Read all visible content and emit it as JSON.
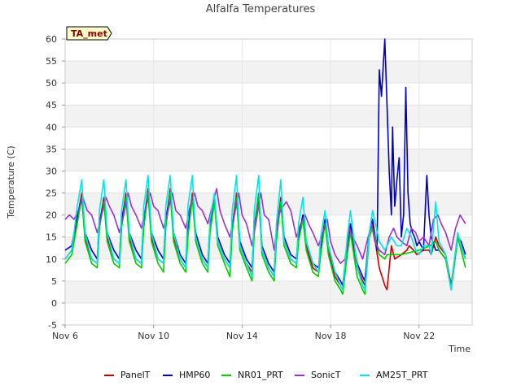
{
  "chart_data": {
    "type": "line",
    "title": "Alfalfa Temperatures",
    "xlabel": "Time",
    "ylabel": "Temperature (C)",
    "badge": "TA_met",
    "xlim": [
      6,
      24.4
    ],
    "ylim": [
      -5,
      60
    ],
    "yticks": [
      -5,
      0,
      5,
      10,
      15,
      20,
      25,
      30,
      35,
      40,
      45,
      50,
      55,
      60
    ],
    "xticks": [
      {
        "value": 6,
        "label": "Nov 6"
      },
      {
        "value": 10,
        "label": "Nov 10"
      },
      {
        "value": 14,
        "label": "Nov 14"
      },
      {
        "value": 18,
        "label": "Nov 18"
      },
      {
        "value": 22,
        "label": "Nov 22"
      }
    ],
    "grid": true,
    "legend": "bottom",
    "series": [
      {
        "name": "PanelT",
        "color": "#cc0000",
        "x": [
          6.0,
          6.3,
          6.55,
          6.75,
          6.9,
          7.2,
          7.45,
          7.55,
          7.75,
          7.9,
          8.2,
          8.45,
          8.55,
          8.75,
          8.9,
          9.2,
          9.45,
          9.55,
          9.75,
          9.9,
          10.2,
          10.45,
          10.55,
          10.75,
          10.9,
          11.2,
          11.45,
          11.55,
          11.75,
          11.9,
          12.2,
          12.45,
          12.55,
          12.75,
          12.9,
          13.2,
          13.45,
          13.55,
          13.75,
          13.9,
          14.2,
          14.45,
          14.55,
          14.75,
          14.9,
          15.2,
          15.45,
          15.55,
          15.75,
          15.9,
          16.2,
          16.45,
          16.55,
          16.75,
          16.9,
          17.2,
          17.45,
          17.55,
          17.75,
          17.9,
          18.2,
          18.45,
          18.55,
          18.75,
          18.9,
          19.2,
          19.45,
          19.55,
          19.75,
          19.9,
          20.2,
          20.45,
          20.55,
          20.75,
          20.9,
          21.2,
          21.45,
          21.55,
          21.75,
          21.9,
          22.2,
          22.45,
          22.55,
          22.75,
          22.9,
          23.2,
          23.45,
          23.55,
          23.75,
          23.9,
          24.1
        ],
        "y": [
          10,
          12,
          19,
          25,
          15,
          10,
          9,
          18,
          24,
          15,
          10,
          9,
          18,
          25,
          15,
          10,
          9,
          18,
          26,
          15,
          10,
          9,
          18,
          26,
          15,
          10,
          8,
          16,
          25,
          15,
          10,
          8,
          17,
          24,
          14,
          10,
          8,
          17,
          25,
          13,
          9,
          7,
          17,
          25,
          12,
          8,
          6,
          15,
          24,
          14,
          10,
          9,
          15,
          20,
          13,
          8,
          7,
          12,
          19,
          12,
          6,
          4,
          3,
          12,
          17,
          8,
          5,
          4,
          16,
          18,
          8,
          4,
          3,
          13,
          10,
          11,
          12,
          13,
          12,
          11,
          12,
          12,
          11,
          15,
          13,
          11,
          4,
          8,
          15,
          13,
          10
        ]
      },
      {
        "name": "HMP60",
        "color": "#0000cc",
        "x": [
          6.0,
          6.3,
          6.55,
          6.75,
          6.9,
          7.2,
          7.45,
          7.55,
          7.75,
          7.9,
          8.2,
          8.45,
          8.55,
          8.75,
          8.9,
          9.2,
          9.45,
          9.55,
          9.75,
          9.9,
          10.2,
          10.45,
          10.55,
          10.75,
          10.9,
          11.2,
          11.45,
          11.55,
          11.75,
          11.9,
          12.2,
          12.45,
          12.55,
          12.75,
          12.9,
          13.2,
          13.45,
          13.55,
          13.75,
          13.9,
          14.2,
          14.45,
          14.55,
          14.75,
          14.9,
          15.2,
          15.45,
          15.55,
          15.75,
          15.9,
          16.2,
          16.45,
          16.55,
          16.75,
          16.9,
          17.2,
          17.45,
          17.55,
          17.75,
          17.9,
          18.2,
          18.45,
          18.55,
          18.75,
          18.9,
          19.2,
          19.45,
          19.55,
          19.75,
          19.9,
          20.1,
          20.2,
          20.3,
          20.45,
          20.55,
          20.65,
          20.75,
          20.8,
          20.9,
          21.0,
          21.1,
          21.2,
          21.3,
          21.4,
          21.5,
          21.6,
          21.7,
          21.8,
          21.9,
          22.0,
          22.2,
          22.35,
          22.45,
          22.55,
          22.75,
          22.9,
          23.2,
          23.45,
          23.55,
          23.75,
          23.9,
          24.1
        ],
        "y": [
          12,
          13,
          20,
          24,
          16,
          12,
          10,
          18,
          23,
          16,
          12,
          10,
          19,
          24,
          16,
          12,
          10,
          19,
          25,
          16,
          12,
          10,
          19,
          25,
          16,
          11,
          9,
          17,
          24,
          16,
          11,
          9,
          18,
          24,
          15,
          11,
          9,
          17,
          24,
          14,
          10,
          8,
          17,
          24,
          13,
          9,
          7,
          16,
          23,
          15,
          11,
          10,
          15,
          20,
          14,
          9,
          8,
          12,
          19,
          13,
          7,
          5,
          4,
          13,
          18,
          9,
          6,
          5,
          16,
          19,
          12,
          53,
          47,
          60,
          45,
          30,
          20,
          40,
          22,
          28,
          33,
          15,
          20,
          49,
          25,
          18,
          16,
          15,
          13,
          14,
          12,
          29,
          20,
          15,
          12,
          12,
          10,
          4,
          7,
          15,
          14,
          11
        ]
      },
      {
        "name": "NR01_PRT",
        "color": "#00cc00",
        "x": [
          6.0,
          6.3,
          6.55,
          6.75,
          6.9,
          7.2,
          7.45,
          7.55,
          7.75,
          7.9,
          8.2,
          8.45,
          8.55,
          8.75,
          8.9,
          9.2,
          9.45,
          9.55,
          9.75,
          9.9,
          10.2,
          10.45,
          10.55,
          10.75,
          10.9,
          11.2,
          11.45,
          11.55,
          11.75,
          11.9,
          12.2,
          12.45,
          12.55,
          12.75,
          12.9,
          13.2,
          13.45,
          13.55,
          13.75,
          13.9,
          14.2,
          14.45,
          14.55,
          14.75,
          14.9,
          15.2,
          15.45,
          15.55,
          15.75,
          15.9,
          16.2,
          16.45,
          16.55,
          16.75,
          16.9,
          17.2,
          17.45,
          17.55,
          17.75,
          17.9,
          18.2,
          18.45,
          18.55,
          18.75,
          18.9,
          19.2,
          19.45,
          19.55,
          19.75,
          19.9,
          20.2,
          20.45,
          20.55,
          21.2,
          22.0,
          22.5,
          22.75,
          22.9,
          23.2,
          23.45,
          23.55,
          23.75,
          23.9,
          24.1
        ],
        "y": [
          9,
          11,
          18,
          24,
          14,
          9,
          8,
          17,
          23,
          14,
          9,
          8,
          17,
          24,
          14,
          9,
          8,
          17,
          25,
          14,
          9,
          7,
          17,
          25,
          14,
          9,
          7,
          15,
          24,
          14,
          9,
          7,
          16,
          23,
          13,
          9,
          6,
          16,
          24,
          12,
          8,
          5,
          16,
          25,
          11,
          7,
          5,
          14,
          23,
          13,
          9,
          8,
          14,
          19,
          12,
          7,
          6,
          11,
          18,
          11,
          5,
          3,
          2,
          11,
          16,
          6,
          3,
          2,
          15,
          17,
          11,
          10,
          11,
          11,
          12,
          13,
          14,
          12,
          10,
          3,
          7,
          15,
          12,
          8
        ]
      },
      {
        "name": "SonicT",
        "color": "#9933cc",
        "x": [
          6.0,
          6.2,
          6.4,
          6.6,
          6.8,
          7.0,
          7.2,
          7.45,
          7.65,
          7.85,
          8.0,
          8.2,
          8.45,
          8.65,
          8.85,
          9.0,
          9.2,
          9.45,
          9.65,
          9.85,
          10.0,
          10.2,
          10.45,
          10.65,
          10.85,
          11.0,
          11.2,
          11.45,
          11.65,
          11.85,
          12.0,
          12.2,
          12.45,
          12.65,
          12.85,
          13.0,
          13.2,
          13.45,
          13.65,
          13.85,
          14.0,
          14.2,
          14.45,
          14.65,
          14.85,
          15.0,
          15.2,
          15.45,
          15.65,
          15.85,
          16.0,
          16.2,
          16.45,
          16.65,
          16.85,
          17.0,
          17.2,
          17.45,
          17.65,
          17.85,
          18.0,
          18.2,
          18.45,
          18.65,
          18.85,
          19.0,
          19.2,
          19.45,
          19.65,
          19.85,
          20.0,
          20.2,
          20.45,
          20.65,
          20.85,
          21.0,
          21.2,
          21.45,
          21.65,
          21.85,
          22.0,
          22.2,
          22.45,
          22.65,
          22.85,
          23.0,
          23.2,
          23.45,
          23.65,
          23.85,
          24.1
        ],
        "y": [
          19,
          20,
          19,
          21,
          24,
          21,
          20,
          16,
          20,
          24,
          22,
          20,
          16,
          20,
          25,
          22,
          20,
          17,
          22,
          25,
          22,
          21,
          17,
          21,
          25,
          21,
          20,
          17,
          22,
          25,
          22,
          21,
          18,
          22,
          26,
          21,
          18,
          15,
          20,
          25,
          20,
          18,
          13,
          19,
          25,
          20,
          19,
          12,
          20,
          22,
          23,
          21,
          15,
          18,
          20,
          18,
          16,
          13,
          16,
          19,
          14,
          11,
          9,
          10,
          17,
          15,
          13,
          10,
          14,
          18,
          14,
          12,
          11,
          15,
          17,
          15,
          14,
          13,
          17,
          16,
          14,
          15,
          13,
          19,
          20,
          18,
          16,
          12,
          17,
          20,
          18
        ]
      },
      {
        "name": "AM25T_PRT",
        "color": "#00e5e5",
        "x": [
          6.0,
          6.3,
          6.55,
          6.75,
          6.9,
          7.2,
          7.45,
          7.55,
          7.75,
          7.9,
          8.2,
          8.45,
          8.55,
          8.75,
          8.9,
          9.2,
          9.45,
          9.55,
          9.75,
          9.9,
          10.2,
          10.45,
          10.55,
          10.75,
          10.9,
          11.2,
          11.45,
          11.55,
          11.75,
          11.9,
          12.2,
          12.45,
          12.55,
          12.75,
          12.9,
          13.2,
          13.45,
          13.55,
          13.75,
          13.9,
          14.2,
          14.45,
          14.55,
          14.75,
          14.9,
          15.2,
          15.45,
          15.55,
          15.75,
          15.9,
          16.2,
          16.45,
          16.55,
          16.75,
          16.9,
          17.2,
          17.45,
          17.55,
          17.75,
          17.9,
          18.2,
          18.45,
          18.55,
          18.75,
          18.9,
          19.2,
          19.45,
          19.55,
          19.75,
          19.9,
          20.2,
          20.45,
          20.55,
          20.75,
          21.0,
          21.2,
          21.45,
          21.65,
          21.85,
          22.0,
          22.2,
          22.45,
          22.55,
          22.75,
          22.9,
          23.2,
          23.45,
          23.55,
          23.75,
          23.9,
          24.1
        ],
        "y": [
          10,
          12,
          22,
          28,
          16,
          10,
          9,
          21,
          28,
          16,
          10,
          9,
          21,
          28,
          16,
          10,
          9,
          22,
          29,
          16,
          10,
          9,
          22,
          29,
          16,
          10,
          8,
          22,
          29,
          15,
          10,
          8,
          19,
          25,
          14,
          10,
          8,
          21,
          29,
          13,
          9,
          6,
          21,
          29,
          12,
          8,
          6,
          18,
          28,
          14,
          10,
          9,
          18,
          24,
          14,
          9,
          7,
          15,
          21,
          13,
          7,
          4,
          3,
          15,
          21,
          8,
          4,
          3,
          16,
          21,
          14,
          12,
          13,
          15,
          13,
          13,
          17,
          15,
          12,
          11,
          13,
          13,
          11,
          23,
          14,
          11,
          3,
          8,
          16,
          13,
          10
        ]
      }
    ]
  }
}
